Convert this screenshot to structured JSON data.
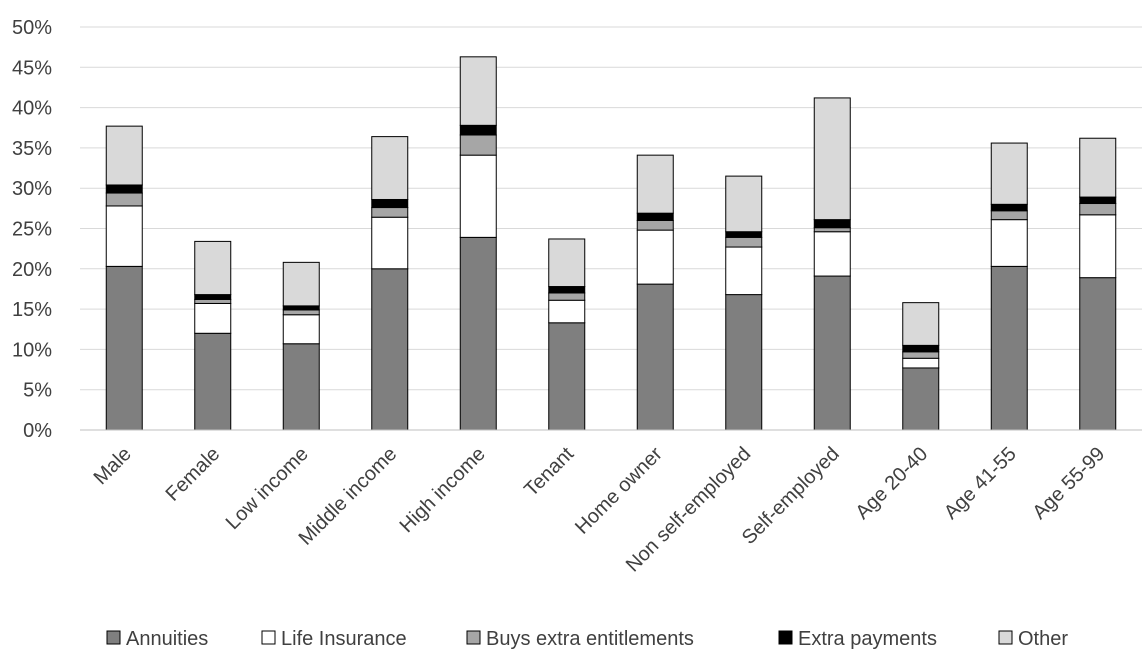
{
  "chart_data": {
    "type": "bar",
    "stacked": true,
    "categories": [
      "Male",
      "Female",
      "Low income",
      "Middle income",
      "High income",
      "Tenant",
      "Home owner",
      "Non self-employed",
      "Self-employed",
      "Age 20-40",
      "Age 41-55",
      "Age 55-99"
    ],
    "series": [
      {
        "name": "Annuities",
        "color": "#7f7f7f",
        "values": [
          20.3,
          12.0,
          10.7,
          20.0,
          23.9,
          13.3,
          18.1,
          16.8,
          19.1,
          7.7,
          20.3,
          18.9
        ]
      },
      {
        "name": "Life Insurance",
        "color": "#ffffff",
        "values": [
          7.5,
          3.7,
          3.6,
          6.4,
          10.2,
          2.8,
          6.7,
          5.9,
          5.5,
          1.2,
          5.8,
          7.8
        ]
      },
      {
        "name": "Buys extra entitlements",
        "color": "#a6a6a6",
        "values": [
          1.6,
          0.5,
          0.6,
          1.2,
          2.5,
          0.9,
          1.2,
          1.2,
          0.5,
          0.8,
          1.1,
          1.4
        ]
      },
      {
        "name": "Extra payments",
        "color": "#000000",
        "values": [
          1.0,
          0.6,
          0.5,
          1.0,
          1.2,
          0.8,
          0.9,
          0.7,
          1.0,
          0.8,
          0.8,
          0.8
        ]
      },
      {
        "name": "Other",
        "color": "#d9d9d9",
        "values": [
          7.3,
          6.6,
          5.4,
          7.8,
          8.5,
          5.9,
          7.2,
          6.9,
          15.1,
          5.3,
          7.6,
          7.3
        ]
      }
    ],
    "ylim": [
      0,
      50
    ],
    "yticks": [
      "0%",
      "5%",
      "10%",
      "15%",
      "20%",
      "25%",
      "30%",
      "35%",
      "40%",
      "45%",
      "50%"
    ],
    "ytick_values": [
      0,
      5,
      10,
      15,
      20,
      25,
      30,
      35,
      40,
      45,
      50
    ],
    "grid": true,
    "legend_position": "bottom",
    "gridline_color": "#d9d9d9",
    "axis_color": "#bfbfbf",
    "bar_outline_color": "#000000",
    "text_color": "#404040"
  }
}
